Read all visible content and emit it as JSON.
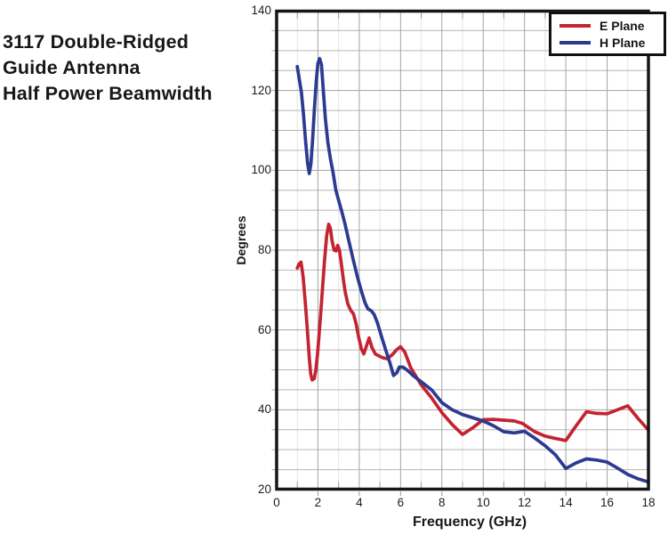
{
  "page": {
    "background": "#ffffff"
  },
  "title": {
    "lines": [
      "3117 Double-Ridged",
      "Guide Antenna",
      "Half Power Beamwidth"
    ]
  },
  "chart_data": {
    "type": "line",
    "title": "3117 Double-Ridged Guide Antenna Half Power Beamwidth",
    "xlabel": "Frequency (GHz)",
    "ylabel": "Degrees",
    "xlim": [
      0,
      18
    ],
    "ylim": [
      20,
      140
    ],
    "x_ticks": [
      0,
      2,
      4,
      6,
      8,
      10,
      12,
      14,
      16,
      18
    ],
    "x_minor_step": 1,
    "y_ticks": [
      20,
      40,
      60,
      80,
      100,
      120,
      140
    ],
    "y_grid_step": 5,
    "grid": "on",
    "legend": {
      "position": "top-right",
      "entries": [
        {
          "label": "E Plane",
          "color": "#c42331"
        },
        {
          "label": "H Plane",
          "color": "#2c3a91"
        }
      ]
    },
    "series": [
      {
        "name": "E Plane",
        "color": "#c42331",
        "points": [
          [
            1.0,
            75.5
          ],
          [
            1.08,
            76.5
          ],
          [
            1.18,
            77
          ],
          [
            1.28,
            73.5
          ],
          [
            1.38,
            67.5
          ],
          [
            1.48,
            60.5
          ],
          [
            1.58,
            53
          ],
          [
            1.65,
            49
          ],
          [
            1.72,
            47.5
          ],
          [
            1.82,
            47.8
          ],
          [
            1.9,
            50
          ],
          [
            1.98,
            54
          ],
          [
            2.06,
            59
          ],
          [
            2.14,
            64.5
          ],
          [
            2.22,
            70.5
          ],
          [
            2.32,
            77.5
          ],
          [
            2.42,
            83.5
          ],
          [
            2.52,
            86.5
          ],
          [
            2.6,
            85.5
          ],
          [
            2.68,
            82.5
          ],
          [
            2.78,
            80
          ],
          [
            2.88,
            79.8
          ],
          [
            2.96,
            81.2
          ],
          [
            3.04,
            80
          ],
          [
            3.12,
            77
          ],
          [
            3.22,
            73
          ],
          [
            3.32,
            69.5
          ],
          [
            3.45,
            66.5
          ],
          [
            3.58,
            65
          ],
          [
            3.72,
            64
          ],
          [
            3.85,
            61.5
          ],
          [
            3.98,
            58
          ],
          [
            4.1,
            55.3
          ],
          [
            4.22,
            54
          ],
          [
            4.35,
            56
          ],
          [
            4.48,
            58
          ],
          [
            4.62,
            55.5
          ],
          [
            4.78,
            54
          ],
          [
            4.95,
            53.5
          ],
          [
            5.15,
            53
          ],
          [
            5.35,
            52.8
          ],
          [
            5.6,
            53.8
          ],
          [
            5.8,
            55
          ],
          [
            6.0,
            55.8
          ],
          [
            6.2,
            54.5
          ],
          [
            6.5,
            50.5
          ],
          [
            7.0,
            46.2
          ],
          [
            7.5,
            43
          ],
          [
            8.0,
            39.3
          ],
          [
            8.5,
            36.3
          ],
          [
            9.0,
            33.8
          ],
          [
            9.5,
            35.5
          ],
          [
            10.0,
            37.5
          ],
          [
            10.5,
            37.6
          ],
          [
            11.0,
            37.4
          ],
          [
            11.5,
            37.2
          ],
          [
            11.9,
            36.6
          ],
          [
            12.5,
            34.5
          ],
          [
            13.0,
            33.4
          ],
          [
            13.5,
            32.8
          ],
          [
            14.0,
            32.3
          ],
          [
            14.5,
            36
          ],
          [
            15.0,
            39.5
          ],
          [
            15.5,
            39.1
          ],
          [
            16.0,
            39
          ],
          [
            16.5,
            40
          ],
          [
            17.0,
            41
          ],
          [
            17.5,
            37.8
          ],
          [
            18.0,
            34.9
          ]
        ]
      },
      {
        "name": "H Plane",
        "color": "#2c3a91",
        "points": [
          [
            1.0,
            126
          ],
          [
            1.1,
            122.8
          ],
          [
            1.2,
            119.5
          ],
          [
            1.3,
            114
          ],
          [
            1.4,
            107.5
          ],
          [
            1.5,
            101.8
          ],
          [
            1.58,
            99.2
          ],
          [
            1.66,
            101.5
          ],
          [
            1.74,
            107.5
          ],
          [
            1.83,
            115.5
          ],
          [
            1.92,
            122.5
          ],
          [
            2.0,
            126.8
          ],
          [
            2.08,
            128
          ],
          [
            2.17,
            126.5
          ],
          [
            2.26,
            120
          ],
          [
            2.36,
            113
          ],
          [
            2.48,
            107
          ],
          [
            2.6,
            103
          ],
          [
            2.73,
            99.5
          ],
          [
            2.87,
            95
          ],
          [
            3.0,
            92.5
          ],
          [
            3.15,
            89.8
          ],
          [
            3.3,
            86.8
          ],
          [
            3.5,
            82.2
          ],
          [
            3.7,
            77.8
          ],
          [
            3.9,
            73.5
          ],
          [
            4.1,
            69.8
          ],
          [
            4.28,
            66.8
          ],
          [
            4.42,
            65.3
          ],
          [
            4.58,
            64.8
          ],
          [
            4.72,
            63.9
          ],
          [
            4.88,
            61.8
          ],
          [
            5.08,
            58.3
          ],
          [
            5.28,
            55
          ],
          [
            5.48,
            51.8
          ],
          [
            5.66,
            48.6
          ],
          [
            5.82,
            49.3
          ],
          [
            5.94,
            50.7
          ],
          [
            6.12,
            50.7
          ],
          [
            6.35,
            49.8
          ],
          [
            6.6,
            48.6
          ],
          [
            7.0,
            47
          ],
          [
            7.5,
            45
          ],
          [
            8.0,
            41.8
          ],
          [
            8.5,
            40
          ],
          [
            9.0,
            38.8
          ],
          [
            9.5,
            38
          ],
          [
            10.0,
            37.2
          ],
          [
            10.5,
            36
          ],
          [
            11.0,
            34.5
          ],
          [
            11.5,
            34.2
          ],
          [
            12.0,
            34.6
          ],
          [
            12.5,
            32.9
          ],
          [
            13.0,
            31
          ],
          [
            13.5,
            28.7
          ],
          [
            14.0,
            25.3
          ],
          [
            14.5,
            26.7
          ],
          [
            15.0,
            27.7
          ],
          [
            15.5,
            27.4
          ],
          [
            16.0,
            26.9
          ],
          [
            16.5,
            25.4
          ],
          [
            17.0,
            23.8
          ],
          [
            17.5,
            22.7
          ],
          [
            18.0,
            21.9
          ]
        ]
      }
    ]
  }
}
